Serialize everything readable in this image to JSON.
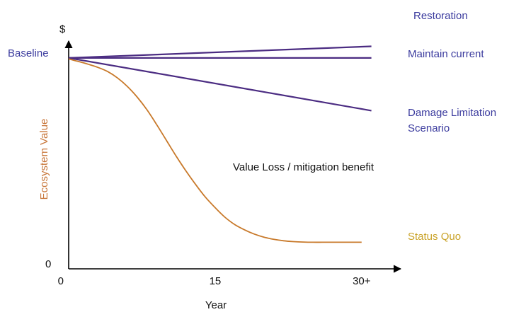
{
  "colors": {
    "axis": "#000000",
    "scenario_line": "#4b2c82",
    "scenario_text": "#3b3b9e",
    "status_quo_line": "#c8792a",
    "status_quo_text": "#c9a227",
    "ylabel_text": "#c8763a",
    "annotation_text": "#111111"
  },
  "chart_data": {
    "type": "line",
    "xlabel": "Year",
    "ylabel": "Ecosystem Value",
    "y_unit_label": "$",
    "y_origin_label": "0",
    "x_ticks": [
      {
        "value": 0,
        "label": "0"
      },
      {
        "value": 15,
        "label": "15"
      },
      {
        "value": 30,
        "label": "30+"
      }
    ],
    "xlim": [
      0,
      34
    ],
    "ylim": [
      0,
      108
    ],
    "baseline_label": "Baseline",
    "baseline_value": 100,
    "annotation": "Value Loss / mitigation benefit",
    "grid": false,
    "series": [
      {
        "name": "Restoration",
        "key": "restoration",
        "points": [
          [
            0,
            100
          ],
          [
            31,
            105.5
          ]
        ]
      },
      {
        "name": "Maintain current",
        "key": "maintain",
        "points": [
          [
            0,
            100
          ],
          [
            31,
            100
          ]
        ]
      },
      {
        "name": "Damage Limitation Scenario",
        "label_lines": [
          "Damage Limitation",
          "Scenario"
        ],
        "key": "damage",
        "points": [
          [
            0,
            100
          ],
          [
            31,
            75
          ]
        ]
      },
      {
        "name": "Status Quo",
        "key": "statusquo",
        "points": [
          [
            0,
            99.5
          ],
          [
            1,
            98.3
          ],
          [
            2,
            97
          ],
          [
            3,
            95.5
          ],
          [
            4,
            93.5
          ],
          [
            5,
            90.5
          ],
          [
            6,
            86.5
          ],
          [
            7,
            81.5
          ],
          [
            8,
            75.5
          ],
          [
            9,
            68.5
          ],
          [
            10,
            61
          ],
          [
            11,
            53.5
          ],
          [
            12,
            46.5
          ],
          [
            13,
            40
          ],
          [
            14,
            34
          ],
          [
            15,
            29
          ],
          [
            16,
            24.5
          ],
          [
            17,
            21
          ],
          [
            18,
            18.5
          ],
          [
            19,
            16.5
          ],
          [
            20,
            15
          ],
          [
            21,
            14
          ],
          [
            22,
            13.3
          ],
          [
            23,
            12.9
          ],
          [
            24,
            12.7
          ],
          [
            25,
            12.6
          ],
          [
            26,
            12.6
          ],
          [
            27,
            12.6
          ],
          [
            28,
            12.6
          ],
          [
            29,
            12.6
          ],
          [
            30,
            12.6
          ]
        ]
      }
    ]
  }
}
